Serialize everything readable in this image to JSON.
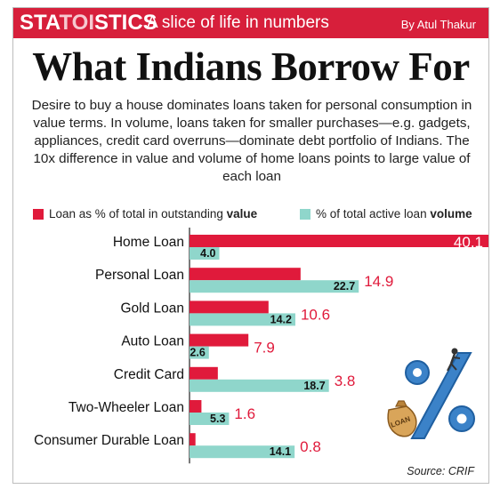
{
  "header": {
    "brand_part1": "STA",
    "brand_part2": "TOI",
    "brand_part3": "STICS",
    "tagline": "A slice of life in numbers",
    "byline": "By Atul Thakur"
  },
  "title": "What Indians Borrow For",
  "description": "Desire to buy a house dominates loans taken for personal consumption in value terms. In volume, loans taken for smaller purchases—e.g. gadgets, appliances, credit card overruns—dominate debt portfolio of Indians. The 10x difference in value and volume of home loans points to large value of each loan",
  "legend": {
    "value_text": "Loan as % of total in outstanding ",
    "value_bold": "value",
    "volume_text": "% of total active loan ",
    "volume_bold": "volume"
  },
  "source": "Source: CRIF",
  "colors": {
    "value": "#e01a3b",
    "volume": "#8fd6cb",
    "header": "#d71f3b"
  },
  "illustration_icon": "loan-bag-percent-icon",
  "illustration_label": "LOAN",
  "chart_data": {
    "type": "bar",
    "orientation": "horizontal",
    "categories": [
      "Home Loan",
      "Personal Loan",
      "Gold Loan",
      "Auto Loan",
      "Credit Card",
      "Two-Wheeler Loan",
      "Consumer Durable Loan"
    ],
    "series": [
      {
        "name": "Loan as % of total in outstanding value",
        "values": [
          40.1,
          14.9,
          10.6,
          7.9,
          3.8,
          1.6,
          0.8
        ]
      },
      {
        "name": "% of total active loan volume",
        "values": [
          4.0,
          22.7,
          14.2,
          2.6,
          18.7,
          5.3,
          14.1
        ]
      }
    ],
    "value_labels": [
      {
        "value": "40.1",
        "volume": "4.0"
      },
      {
        "value": "14.9",
        "volume": "22.7"
      },
      {
        "value": "10.6",
        "volume": "14.2"
      },
      {
        "value": "7.9",
        "volume": "2.6"
      },
      {
        "value": "3.8",
        "volume": "18.7"
      },
      {
        "value": "1.6",
        "volume": "5.3"
      },
      {
        "value": "0.8",
        "volume": "14.1"
      }
    ],
    "xlim": [
      0,
      40.1
    ],
    "grid": false,
    "legend_placement": "top"
  }
}
